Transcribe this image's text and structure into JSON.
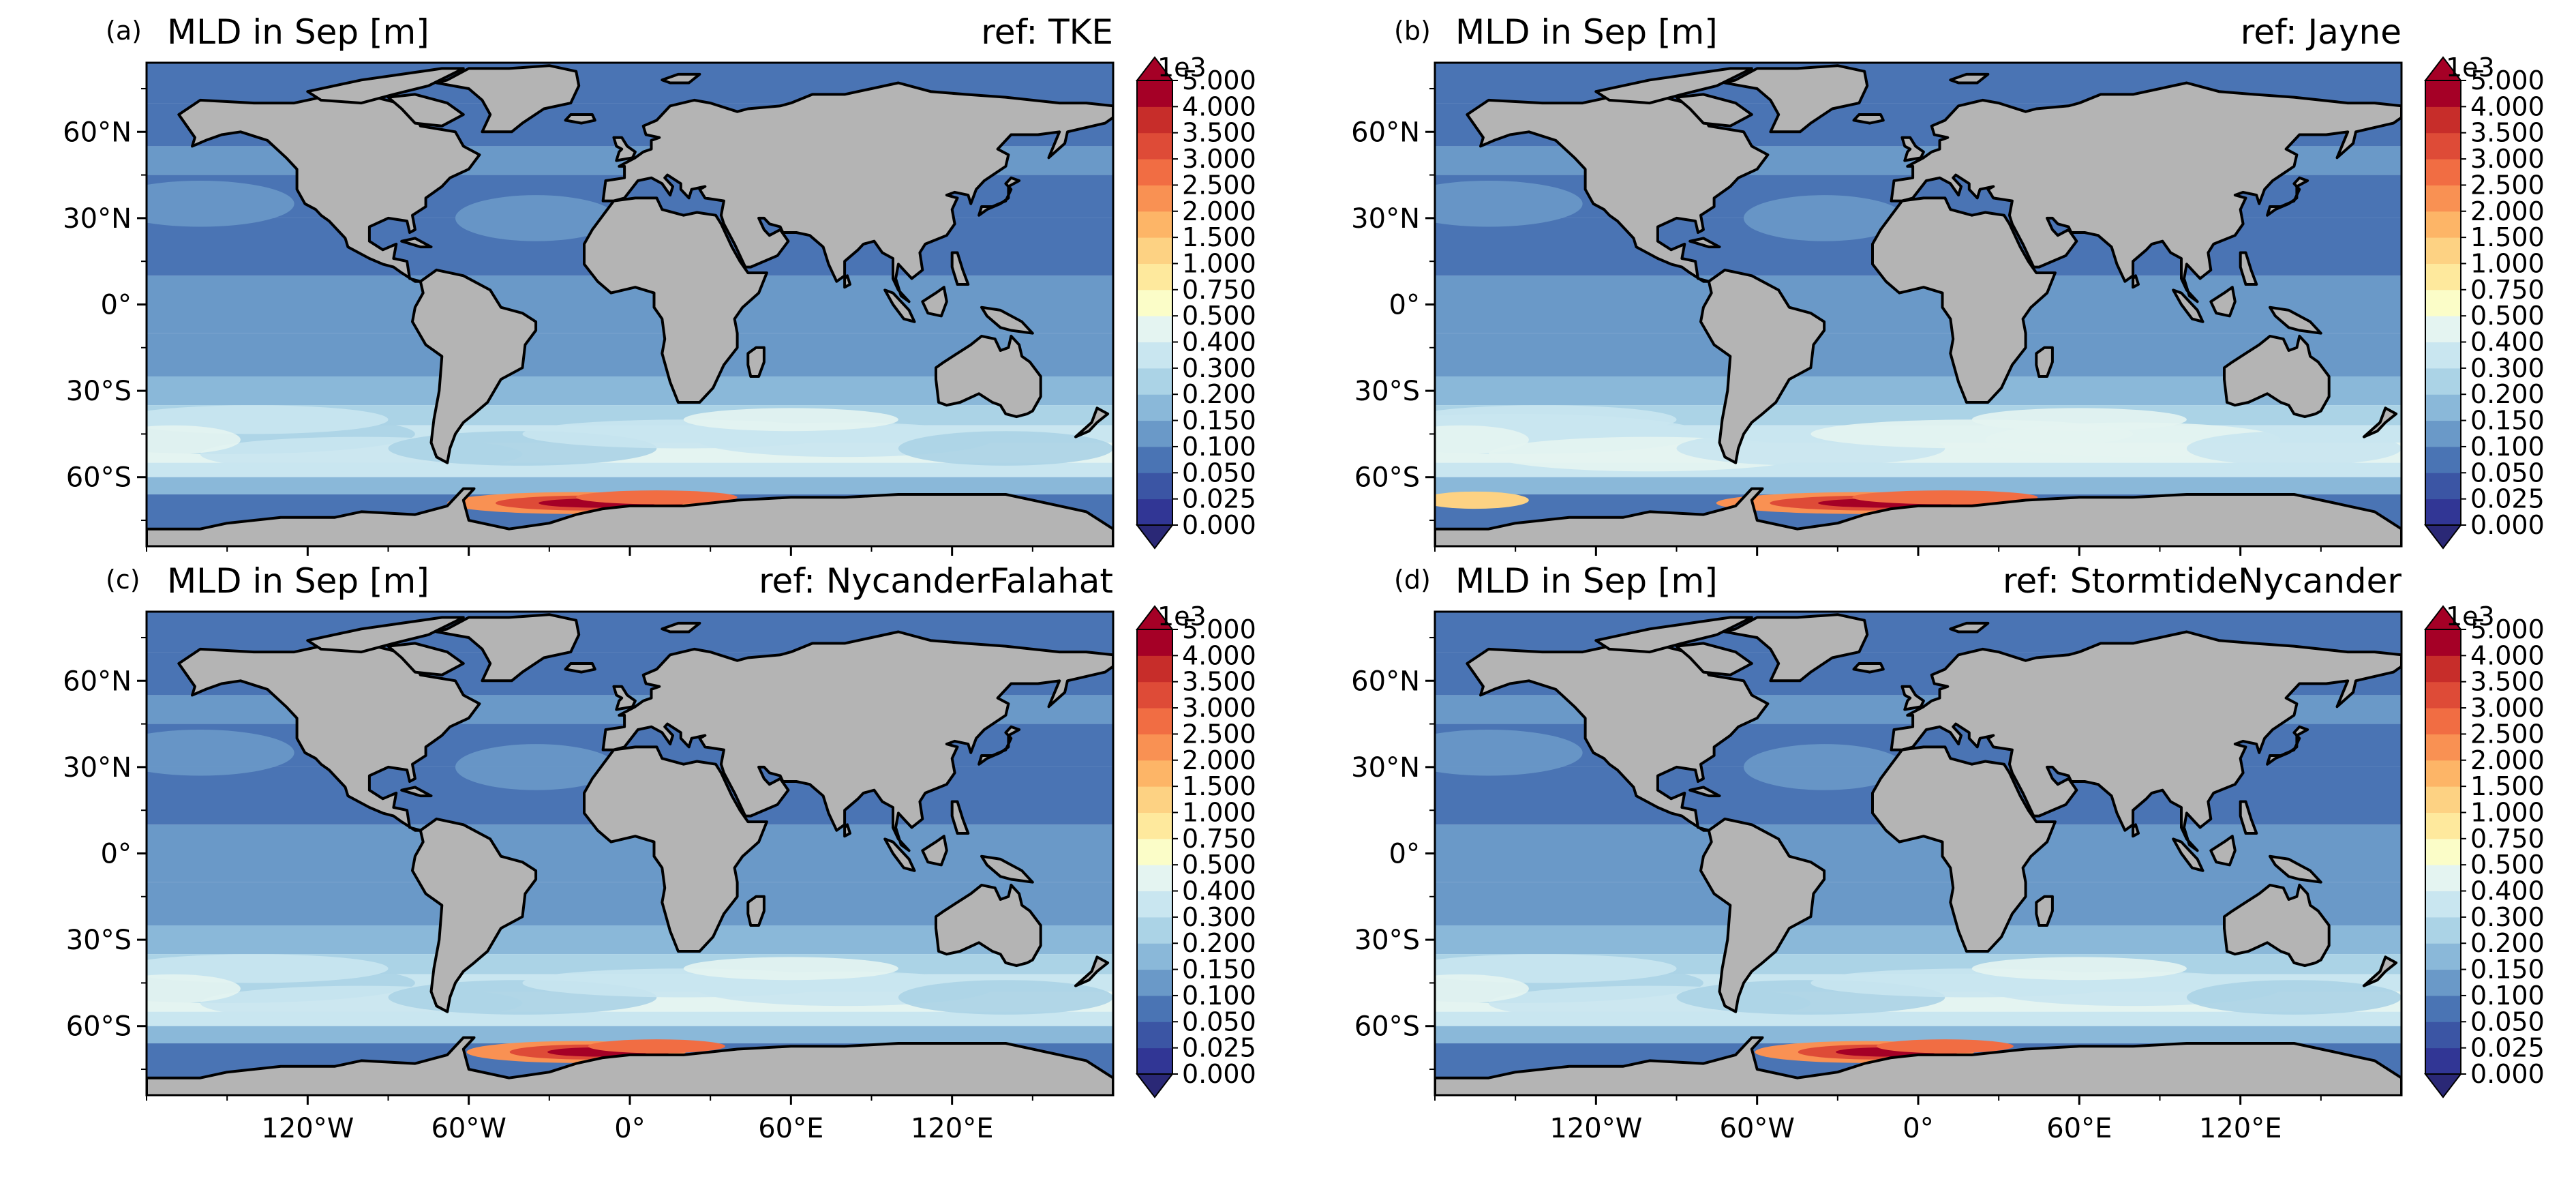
{
  "panels": [
    {
      "label": "(a)",
      "title": "MLD in Sep [m]",
      "ref": "ref: TKE",
      "variant": 0,
      "showXTicks": false
    },
    {
      "label": "(b)",
      "title": "MLD in Sep [m]",
      "ref": "ref: Jayne",
      "variant": 1,
      "showXTicks": false
    },
    {
      "label": "(c)",
      "title": "MLD in Sep [m]",
      "ref": "ref: NycanderFalahat",
      "variant": 2,
      "showXTicks": true
    },
    {
      "label": "(d)",
      "title": "MLD in Sep [m]",
      "ref": "ref: StormtideNycander",
      "variant": 3,
      "showXTicks": true
    }
  ],
  "y_ticks": [
    "60°N",
    "30°N",
    "0°",
    "30°S",
    "60°S"
  ],
  "x_ticks": [
    "120°W",
    "60°W",
    "0°",
    "60°E",
    "120°E"
  ],
  "colorbar": {
    "scale_label": "1e3",
    "levels": [
      "0.000",
      "0.025",
      "0.050",
      "0.100",
      "0.150",
      "0.200",
      "0.300",
      "0.400",
      "0.500",
      "0.750",
      "1.000",
      "1.500",
      "2.000",
      "2.500",
      "3.000",
      "3.500",
      "4.000",
      "5.000"
    ],
    "colors": [
      "#313695",
      "#3b55a4",
      "#4a74b4",
      "#6a99c8",
      "#8ab8d9",
      "#abd3e6",
      "#c9e6f0",
      "#e4f4f1",
      "#fbfdc8",
      "#fee99d",
      "#fdd283",
      "#fdb567",
      "#f99153",
      "#f16d43",
      "#de4b37",
      "#c72d2a",
      "#a50026"
    ]
  },
  "land_color": "#b4b4b4"
}
